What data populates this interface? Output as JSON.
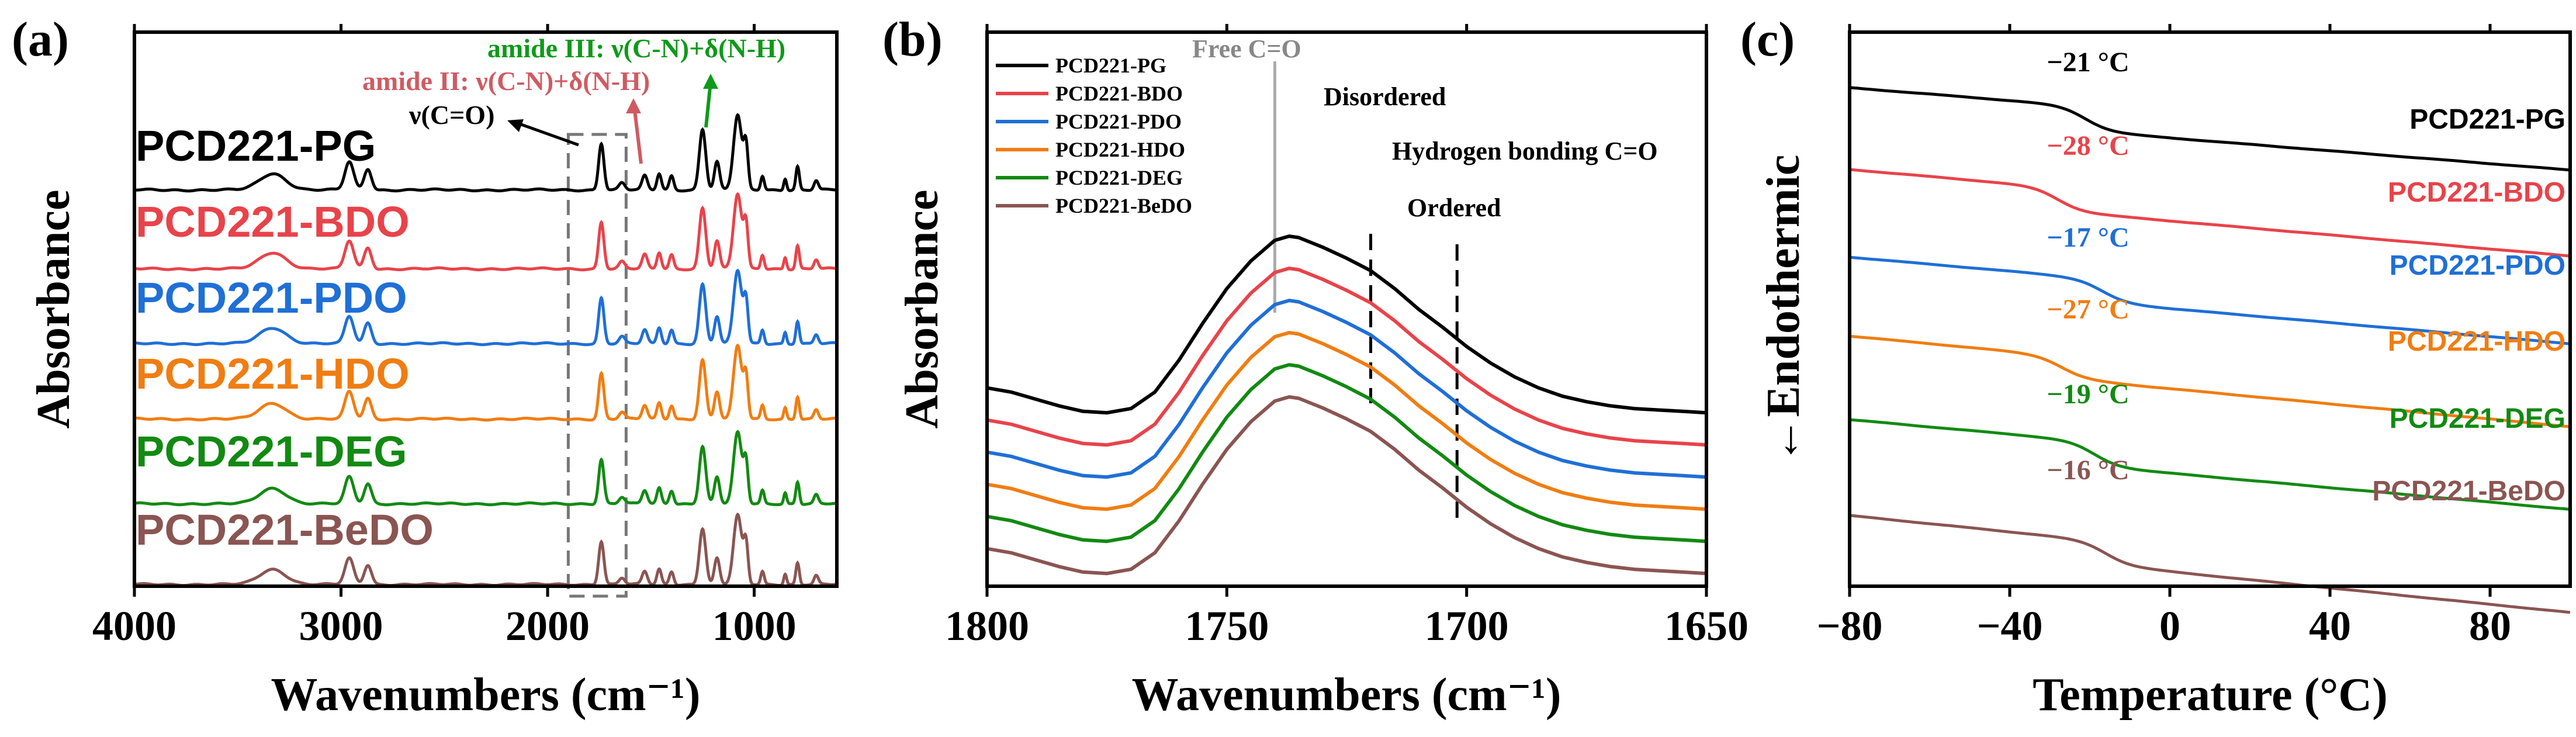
{
  "figure": {
    "colors": {
      "black": "#000000",
      "red": "#e8434a",
      "blue": "#1f6fd6",
      "orange": "#f07d12",
      "green": "#128a12",
      "brown": "#8a5552",
      "gray": "#999999",
      "dark_gray": "#777777",
      "amide2": "#cf5b62",
      "amide3": "#0f9a1a"
    }
  },
  "chart_data": [
    {
      "panel": "a",
      "panel_label": "(a)",
      "type": "line",
      "xlabel": "Wavenumbers (cm⁻¹)",
      "ylabel": "Absorbance",
      "xlim": [
        4000,
        600
      ],
      "xticks": [
        4000,
        3000,
        2000,
        1000
      ],
      "xtick_labels": [
        "4000",
        "3000",
        "2000",
        "1000"
      ],
      "yticks": "none",
      "grid": false,
      "legend": "labels above each curve",
      "series": [
        {
          "name": "PCD221-PG",
          "color": "#000000"
        },
        {
          "name": "PCD221-BDO",
          "color": "#e8434a"
        },
        {
          "name": "PCD221-PDO",
          "color": "#1f6fd6"
        },
        {
          "name": "PCD221-HDO",
          "color": "#f07d12"
        },
        {
          "name": "PCD221-DEG",
          "color": "#128a12"
        },
        {
          "name": "PCD221-BeDO",
          "color": "#8a5552"
        }
      ],
      "spectrum_peaks": [
        {
          "x": 3330,
          "height": 0.35,
          "width": 90
        },
        {
          "x": 2960,
          "height": 0.6,
          "width": 30
        },
        {
          "x": 2870,
          "height": 0.45,
          "width": 25
        },
        {
          "x": 1740,
          "height": 1.0,
          "width": 18
        },
        {
          "x": 1640,
          "height": 0.15,
          "width": 20
        },
        {
          "x": 1530,
          "height": 0.3,
          "width": 18
        },
        {
          "x": 1460,
          "height": 0.35,
          "width": 15
        },
        {
          "x": 1400,
          "height": 0.3,
          "width": 15
        },
        {
          "x": 1250,
          "height": 1.3,
          "width": 22
        },
        {
          "x": 1180,
          "height": 0.6,
          "width": 18
        },
        {
          "x": 1080,
          "height": 1.6,
          "width": 28
        },
        {
          "x": 1040,
          "height": 0.9,
          "width": 15
        },
        {
          "x": 960,
          "height": 0.3,
          "width": 12
        },
        {
          "x": 850,
          "height": 0.25,
          "width": 10
        },
        {
          "x": 790,
          "height": 0.5,
          "width": 12
        },
        {
          "x": 700,
          "height": 0.2,
          "width": 15
        }
      ],
      "annotations": [
        {
          "text": "ν(C=O)",
          "color": "#000000"
        },
        {
          "text": "amide II: ν(C-N)+δ(N-H)",
          "color": "#cf5b62"
        },
        {
          "text": "amide III: ν(C-N)+δ(N-H)",
          "color": "#0f9a1a"
        }
      ],
      "highlight_box_x": [
        1900,
        1620
      ]
    },
    {
      "panel": "b",
      "panel_label": "(b)",
      "type": "line",
      "xlabel": "Wavenumbers (cm⁻¹)",
      "ylabel": "Absorbance",
      "xlim": [
        1800,
        1650
      ],
      "xticks": [
        1800,
        1750,
        1700,
        1650
      ],
      "xtick_labels": [
        "1800",
        "1750",
        "1700",
        "1650"
      ],
      "yticks": "none",
      "grid": false,
      "legend": "top-left",
      "series": [
        {
          "name": "PCD221-PG",
          "color": "#000000",
          "offset": 5
        },
        {
          "name": "PCD221-BDO",
          "color": "#e8434a",
          "offset": 4
        },
        {
          "name": "PCD221-PDO",
          "color": "#1f6fd6",
          "offset": 3
        },
        {
          "name": "PCD221-HDO",
          "color": "#f07d12",
          "offset": 2
        },
        {
          "name": "PCD221-DEG",
          "color": "#128a12",
          "offset": 1
        },
        {
          "name": "PCD221-BeDO",
          "color": "#8a5552",
          "offset": 0
        }
      ],
      "curve_profile": {
        "x": [
          1800,
          1795,
          1790,
          1785,
          1780,
          1775,
          1770,
          1765,
          1760,
          1755,
          1750,
          1745,
          1740,
          1737,
          1735,
          1730,
          1725,
          1720,
          1715,
          1710,
          1705,
          1700,
          1695,
          1690,
          1685,
          1680,
          1675,
          1670,
          1665,
          1660,
          1655,
          1650
        ],
        "y": [
          0.48,
          0.45,
          0.4,
          0.35,
          0.31,
          0.3,
          0.33,
          0.45,
          0.68,
          0.95,
          1.2,
          1.4,
          1.55,
          1.58,
          1.57,
          1.5,
          1.42,
          1.33,
          1.2,
          1.05,
          0.92,
          0.78,
          0.66,
          0.56,
          0.48,
          0.42,
          0.38,
          0.35,
          0.33,
          0.32,
          0.31,
          0.3
        ]
      },
      "reference_lines": [
        {
          "x": 1740,
          "label": "Free C=O",
          "color": "#aaaaaa"
        },
        {
          "x": 1720,
          "label": "Disordered",
          "color": "#000000"
        },
        {
          "x": 1702,
          "label": "Ordered",
          "color": "#000000"
        }
      ],
      "annotation": "Hydrogen bonding C=O"
    },
    {
      "panel": "c",
      "panel_label": "(c)",
      "type": "line",
      "xlabel": "Temperature (°C)",
      "ylabel": "←Endothermic",
      "xlim": [
        -80,
        100
      ],
      "xticks": [
        -80,
        -40,
        0,
        40,
        80
      ],
      "xtick_labels": [
        "−80",
        "−40",
        "0",
        "40",
        "80"
      ],
      "yticks": "none",
      "grid": false,
      "legend": "labels at right of each curve",
      "series": [
        {
          "name": "PCD221-PG",
          "color": "#000000",
          "tg": -21,
          "tg_label": "−21 °C"
        },
        {
          "name": "PCD221-BDO",
          "color": "#e8434a",
          "tg": -28,
          "tg_label": "−28 °C"
        },
        {
          "name": "PCD221-PDO",
          "color": "#1f6fd6",
          "tg": -17,
          "tg_label": "−17 °C"
        },
        {
          "name": "PCD221-HDO",
          "color": "#f07d12",
          "tg": -27,
          "tg_label": "−27 °C"
        },
        {
          "name": "PCD221-DEG",
          "color": "#128a12",
          "tg": -19,
          "tg_label": "−19 °C"
        },
        {
          "name": "PCD221-BeDO",
          "color": "#8a5552",
          "tg": -16,
          "tg_label": "−16 °C"
        }
      ]
    }
  ]
}
